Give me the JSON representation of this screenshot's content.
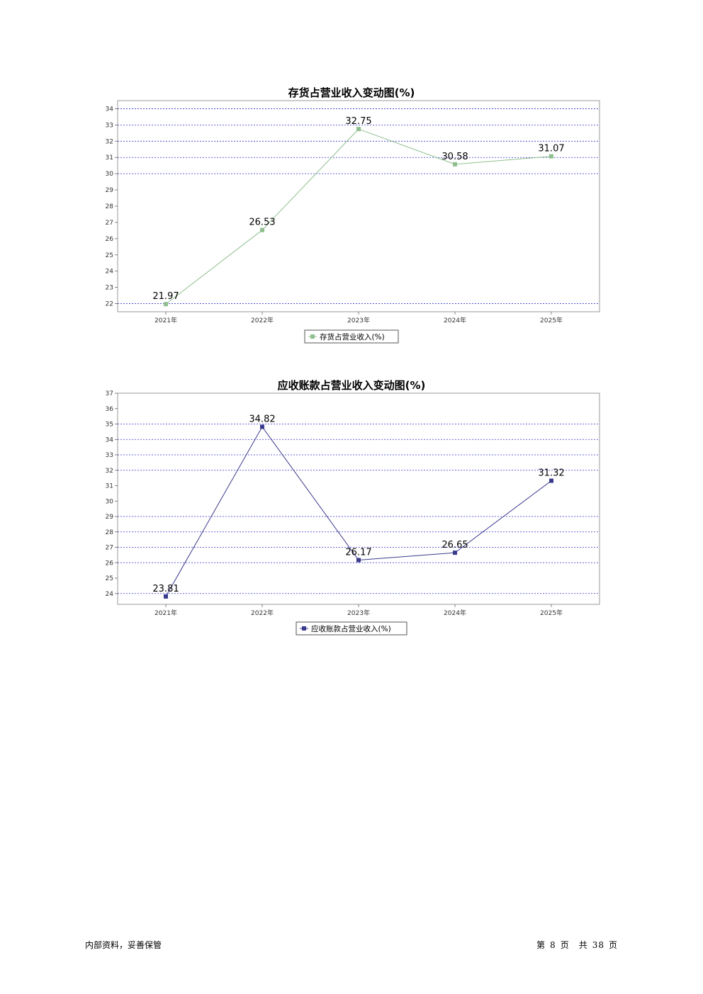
{
  "charts": [
    {
      "title": "存货占营业收入变动图(%)",
      "legend": "存货占营业收入(%)",
      "color": "#8fbf8f"
    },
    {
      "title": "应收账款占营业收入变动图(%)",
      "legend": "应收账款占营业收入(%)",
      "color": "#3a3a8c"
    }
  ],
  "chart_data": [
    {
      "type": "line",
      "title": "存货占营业收入变动图(%)",
      "categories": [
        "2021年",
        "2022年",
        "2023年",
        "2024年",
        "2025年"
      ],
      "series": [
        {
          "name": "存货占营业收入(%)",
          "values": [
            21.97,
            26.53,
            32.75,
            30.58,
            31.07
          ],
          "labels": [
            "21.97",
            "26.53",
            "32.75",
            "30.58",
            "31.07"
          ]
        }
      ],
      "ylim": [
        21.5,
        34.5
      ],
      "yticks": [
        22,
        23,
        24,
        25,
        26,
        27,
        28,
        29,
        30,
        31,
        32,
        33,
        34
      ],
      "gridlines": [
        22,
        30,
        31,
        32,
        33,
        34
      ],
      "legend_position": "bottom",
      "grid": true
    },
    {
      "type": "line",
      "title": "应收账款占营业收入变动图(%)",
      "categories": [
        "2021年",
        "2022年",
        "2023年",
        "2024年",
        "2025年"
      ],
      "series": [
        {
          "name": "应收账款占营业收入(%)",
          "values": [
            23.81,
            34.82,
            26.17,
            26.65,
            31.32
          ],
          "labels": [
            "23.81",
            "34.82",
            "26.17",
            "26.65",
            "31.32"
          ]
        }
      ],
      "ylim": [
        23.3,
        37
      ],
      "yticks": [
        24,
        25,
        26,
        27,
        28,
        29,
        30,
        31,
        32,
        33,
        34,
        35,
        36,
        37
      ],
      "gridlines": [
        24,
        26,
        27,
        28,
        29,
        32,
        33,
        34,
        35
      ],
      "legend_position": "bottom",
      "grid": true
    }
  ],
  "footer": {
    "left": "内部资料，妥善保管",
    "page_prefix": "第",
    "page_num": "8",
    "page_mid": "页　共",
    "page_total": "38",
    "page_suffix": "页"
  }
}
